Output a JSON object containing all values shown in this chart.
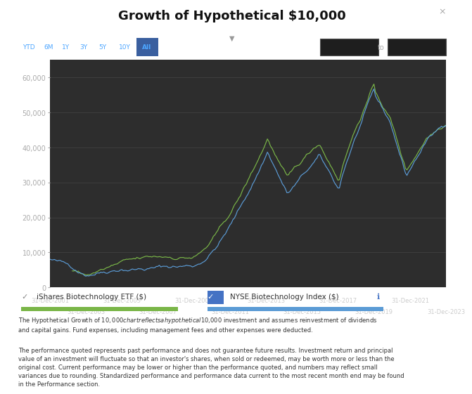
{
  "title": "Growth of Hypothetical $10,000",
  "title_fontsize": 13,
  "bg_color": "#2d2d2d",
  "outer_bg": "#ffffff",
  "line1_color": "#5b9bd5",
  "line2_color": "#7ab648",
  "line1_label": "iShares Biotechnology ETF ($)",
  "line2_label": "NYSE Biotechnology Index ($)",
  "ylabel_ticks": [
    "0",
    "10,000",
    "20,000",
    "30,000",
    "40,000",
    "50,000",
    "60,000"
  ],
  "ytick_vals": [
    0,
    10000,
    20000,
    30000,
    40000,
    50000,
    60000
  ],
  "ylim": [
    0,
    65000
  ],
  "xtick_labels_top": [
    "31-Dec-2001",
    "31-Dec-2005",
    "31-Dec-2009",
    "31-Dec-2013",
    "31-Dec-2017",
    "31-Dec-2021"
  ],
  "xtick_labels_bot": [
    "31-Dec-2003",
    "31-Dec-2007",
    "31-Dec-2011",
    "31-Dec-2015",
    "31-Dec-2019",
    "31-Dec-2023"
  ],
  "toolbar_labels": [
    "YTD",
    "6M",
    "1Y",
    "3Y",
    "5Y",
    "10Y",
    "All"
  ],
  "active_tab": "All",
  "text1": "The Hypothetical Growth of $10,000 chart reflects a hypothetical $10,000 investment and assumes reinvestment of dividends\nand capital gains. Fund expenses, including management fees and other expenses were deducted.",
  "text2": "The performance quoted represents past performance and does not guarantee future results. Investment return and principal\nvalue of an investment will fluctuate so that an investor's shares, when sold or redeemed, may be worth more or less than the\noriginal cost. Current performance may be lower or higher than the performance quoted, and numbers may reflect small\nvariances due to rounding. Standardized performance and performance data current to the most recent month end may be found\nin the Performance section."
}
